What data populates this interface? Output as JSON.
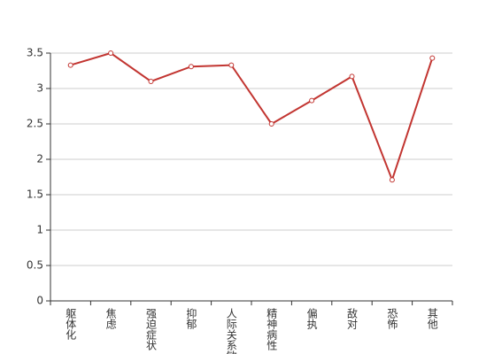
{
  "chart_data": {
    "type": "line",
    "categories": [
      "躯体化",
      "焦虑",
      "强迫症状",
      "抑郁",
      "人际关系敏感",
      "精神病性",
      "偏执",
      "敌对",
      "恐怖",
      "其他"
    ],
    "values": [
      3.33,
      3.5,
      3.1,
      3.31,
      3.33,
      2.5,
      2.83,
      3.17,
      1.71,
      3.43
    ],
    "color": "#c23531",
    "ylim": [
      0,
      3.5
    ],
    "yticks": [
      0,
      0.5,
      1,
      1.5,
      2,
      2.5,
      3,
      3.5
    ],
    "grid": true
  }
}
